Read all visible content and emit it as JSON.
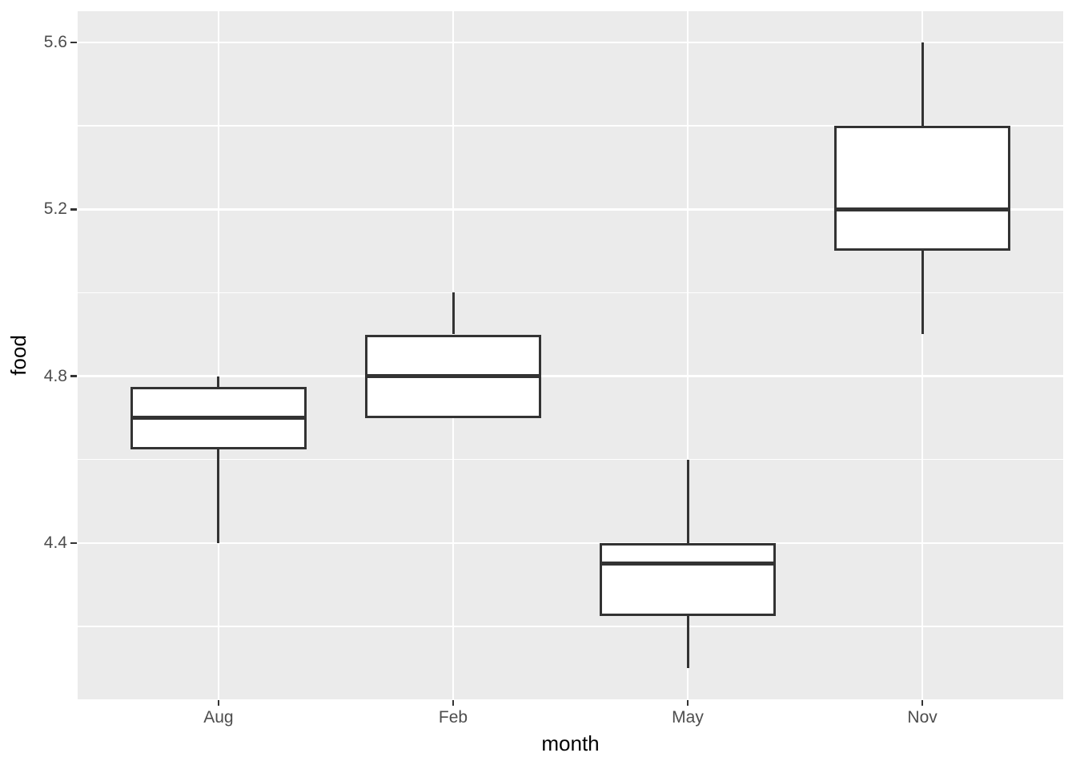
{
  "chart_data": {
    "type": "boxplot",
    "title": "",
    "xlabel": "month",
    "ylabel": "food",
    "categories": [
      "Aug",
      "Feb",
      "May",
      "Nov"
    ],
    "series": [
      {
        "category": "Aug",
        "whisker_low": 4.4,
        "q1": 4.625,
        "median": 4.7,
        "q3": 4.775,
        "whisker_high": 4.8
      },
      {
        "category": "Feb",
        "whisker_low": 4.7,
        "q1": 4.7,
        "median": 4.8,
        "q3": 4.9,
        "whisker_high": 5.0
      },
      {
        "category": "May",
        "whisker_low": 4.1,
        "q1": 4.225,
        "median": 4.35,
        "q3": 4.4,
        "whisker_high": 4.6
      },
      {
        "category": "Nov",
        "whisker_low": 4.9,
        "q1": 5.1,
        "median": 5.2,
        "q3": 5.4,
        "whisker_high": 5.6
      }
    ],
    "ylim": [
      4.025,
      5.675
    ],
    "y_major_ticks": [
      4.4,
      4.8,
      5.2,
      5.6
    ],
    "y_tick_labels": [
      "4.4",
      "4.8",
      "5.2",
      "5.6"
    ],
    "y_minor_gridlines": [
      4.2,
      4.6,
      5.0,
      5.4
    ],
    "grid": "on",
    "legend": "none",
    "box_width_fraction": 0.75,
    "style": {
      "page_background": "#FFFFFF",
      "panel_background": "#EBEBEB",
      "gridline_color": "#FFFFFF",
      "box_fill": "#FFFFFF",
      "box_stroke": "#333333",
      "tick_mark_color": "#333333",
      "tick_label_color": "#4D4D4D",
      "axis_title_color": "#000000"
    }
  }
}
